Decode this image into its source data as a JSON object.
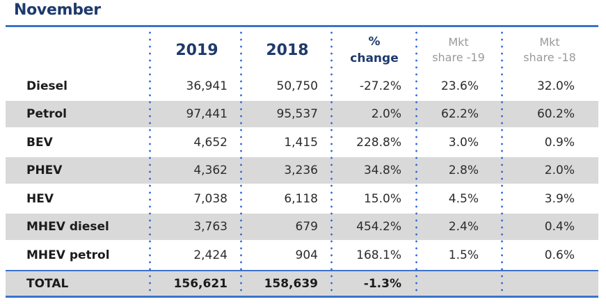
{
  "title": "November",
  "header": {
    "col_2019": "2019",
    "col_2018": "2018",
    "col_change_line1": "%",
    "col_change_line2": "change",
    "col_ms19_line1": "Mkt",
    "col_ms19_line2": "share -19",
    "col_ms18_line1": "Mkt",
    "col_ms18_line2": "share -18"
  },
  "rows": [
    {
      "label": "Diesel",
      "y2019": "36,941",
      "y2018": "50,750",
      "change": "-27.2%",
      "ms19": "23.6%",
      "ms18": "32.0%"
    },
    {
      "label": "Petrol",
      "y2019": "97,441",
      "y2018": "95,537",
      "change": "2.0%",
      "ms19": "62.2%",
      "ms18": "60.2%"
    },
    {
      "label": "BEV",
      "y2019": "4,652",
      "y2018": "1,415",
      "change": "228.8%",
      "ms19": "3.0%",
      "ms18": "0.9%"
    },
    {
      "label": "PHEV",
      "y2019": "4,362",
      "y2018": "3,236",
      "change": "34.8%",
      "ms19": "2.8%",
      "ms18": "2.0%"
    },
    {
      "label": "HEV",
      "y2019": "7,038",
      "y2018": "6,118",
      "change": "15.0%",
      "ms19": "4.5%",
      "ms18": "3.9%"
    },
    {
      "label": "MHEV diesel",
      "y2019": "3,763",
      "y2018": "679",
      "change": "454.2%",
      "ms19": "2.4%",
      "ms18": "0.4%"
    },
    {
      "label": "MHEV petrol",
      "y2019": "2,424",
      "y2018": "904",
      "change": "168.1%",
      "ms19": "1.5%",
      "ms18": "0.6%"
    }
  ],
  "total": {
    "label": "TOTAL",
    "y2019": "156,621",
    "y2018": "158,639",
    "change": "-1.3%",
    "ms19": "",
    "ms18": ""
  },
  "colors": {
    "heading_blue": "#1e3a6d",
    "rule_blue": "#3b73c9",
    "dot_blue": "#2f6ad6",
    "shade_gray": "#d9d9d9",
    "muted_gray": "#9a9a9a"
  }
}
